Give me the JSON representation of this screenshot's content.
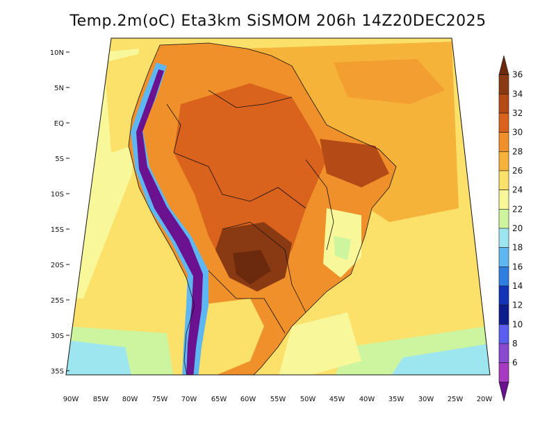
{
  "title": "Temp.2m(oC) Eta3km SiSMOM 206h 14Z20DEC2025",
  "lat_labels": [
    "10N",
    "5N",
    "EQ",
    "5S",
    "10S",
    "15S",
    "20S",
    "25S",
    "30S",
    "35S"
  ],
  "lon_labels": [
    "90W",
    "85W",
    "80W",
    "75W",
    "70W",
    "65W",
    "60W",
    "55W",
    "50W",
    "45W",
    "40W",
    "35W",
    "30W",
    "25W",
    "20W"
  ],
  "colorbar": {
    "labels": [
      "36",
      "34",
      "32",
      "30",
      "28",
      "26",
      "24",
      "22",
      "20",
      "18",
      "16",
      "14",
      "12",
      "10",
      "8",
      "6"
    ],
    "colors": [
      "#6b2a0e",
      "#8a3a12",
      "#b44a16",
      "#d9621c",
      "#f0902a",
      "#f6b33a",
      "#fbe06a",
      "#f8f79a",
      "#cdf5a0",
      "#9ee6ef",
      "#5fb7f2",
      "#2e7fe0",
      "#1434b8",
      "#0c1c8c",
      "#5b5ff0",
      "#8a4ad0",
      "#a63ac0",
      "#6a1290"
    ]
  },
  "colors": {
    "ocean_warm": "#f6b33a",
    "ocean_mid": "#fbe06a",
    "ocean_cool": "#f8f79a",
    "ocean_cold": "#9ee6ef",
    "land_hot": "#d9621c",
    "land_very_hot": "#8a3a12",
    "andes": "#6a1290"
  }
}
